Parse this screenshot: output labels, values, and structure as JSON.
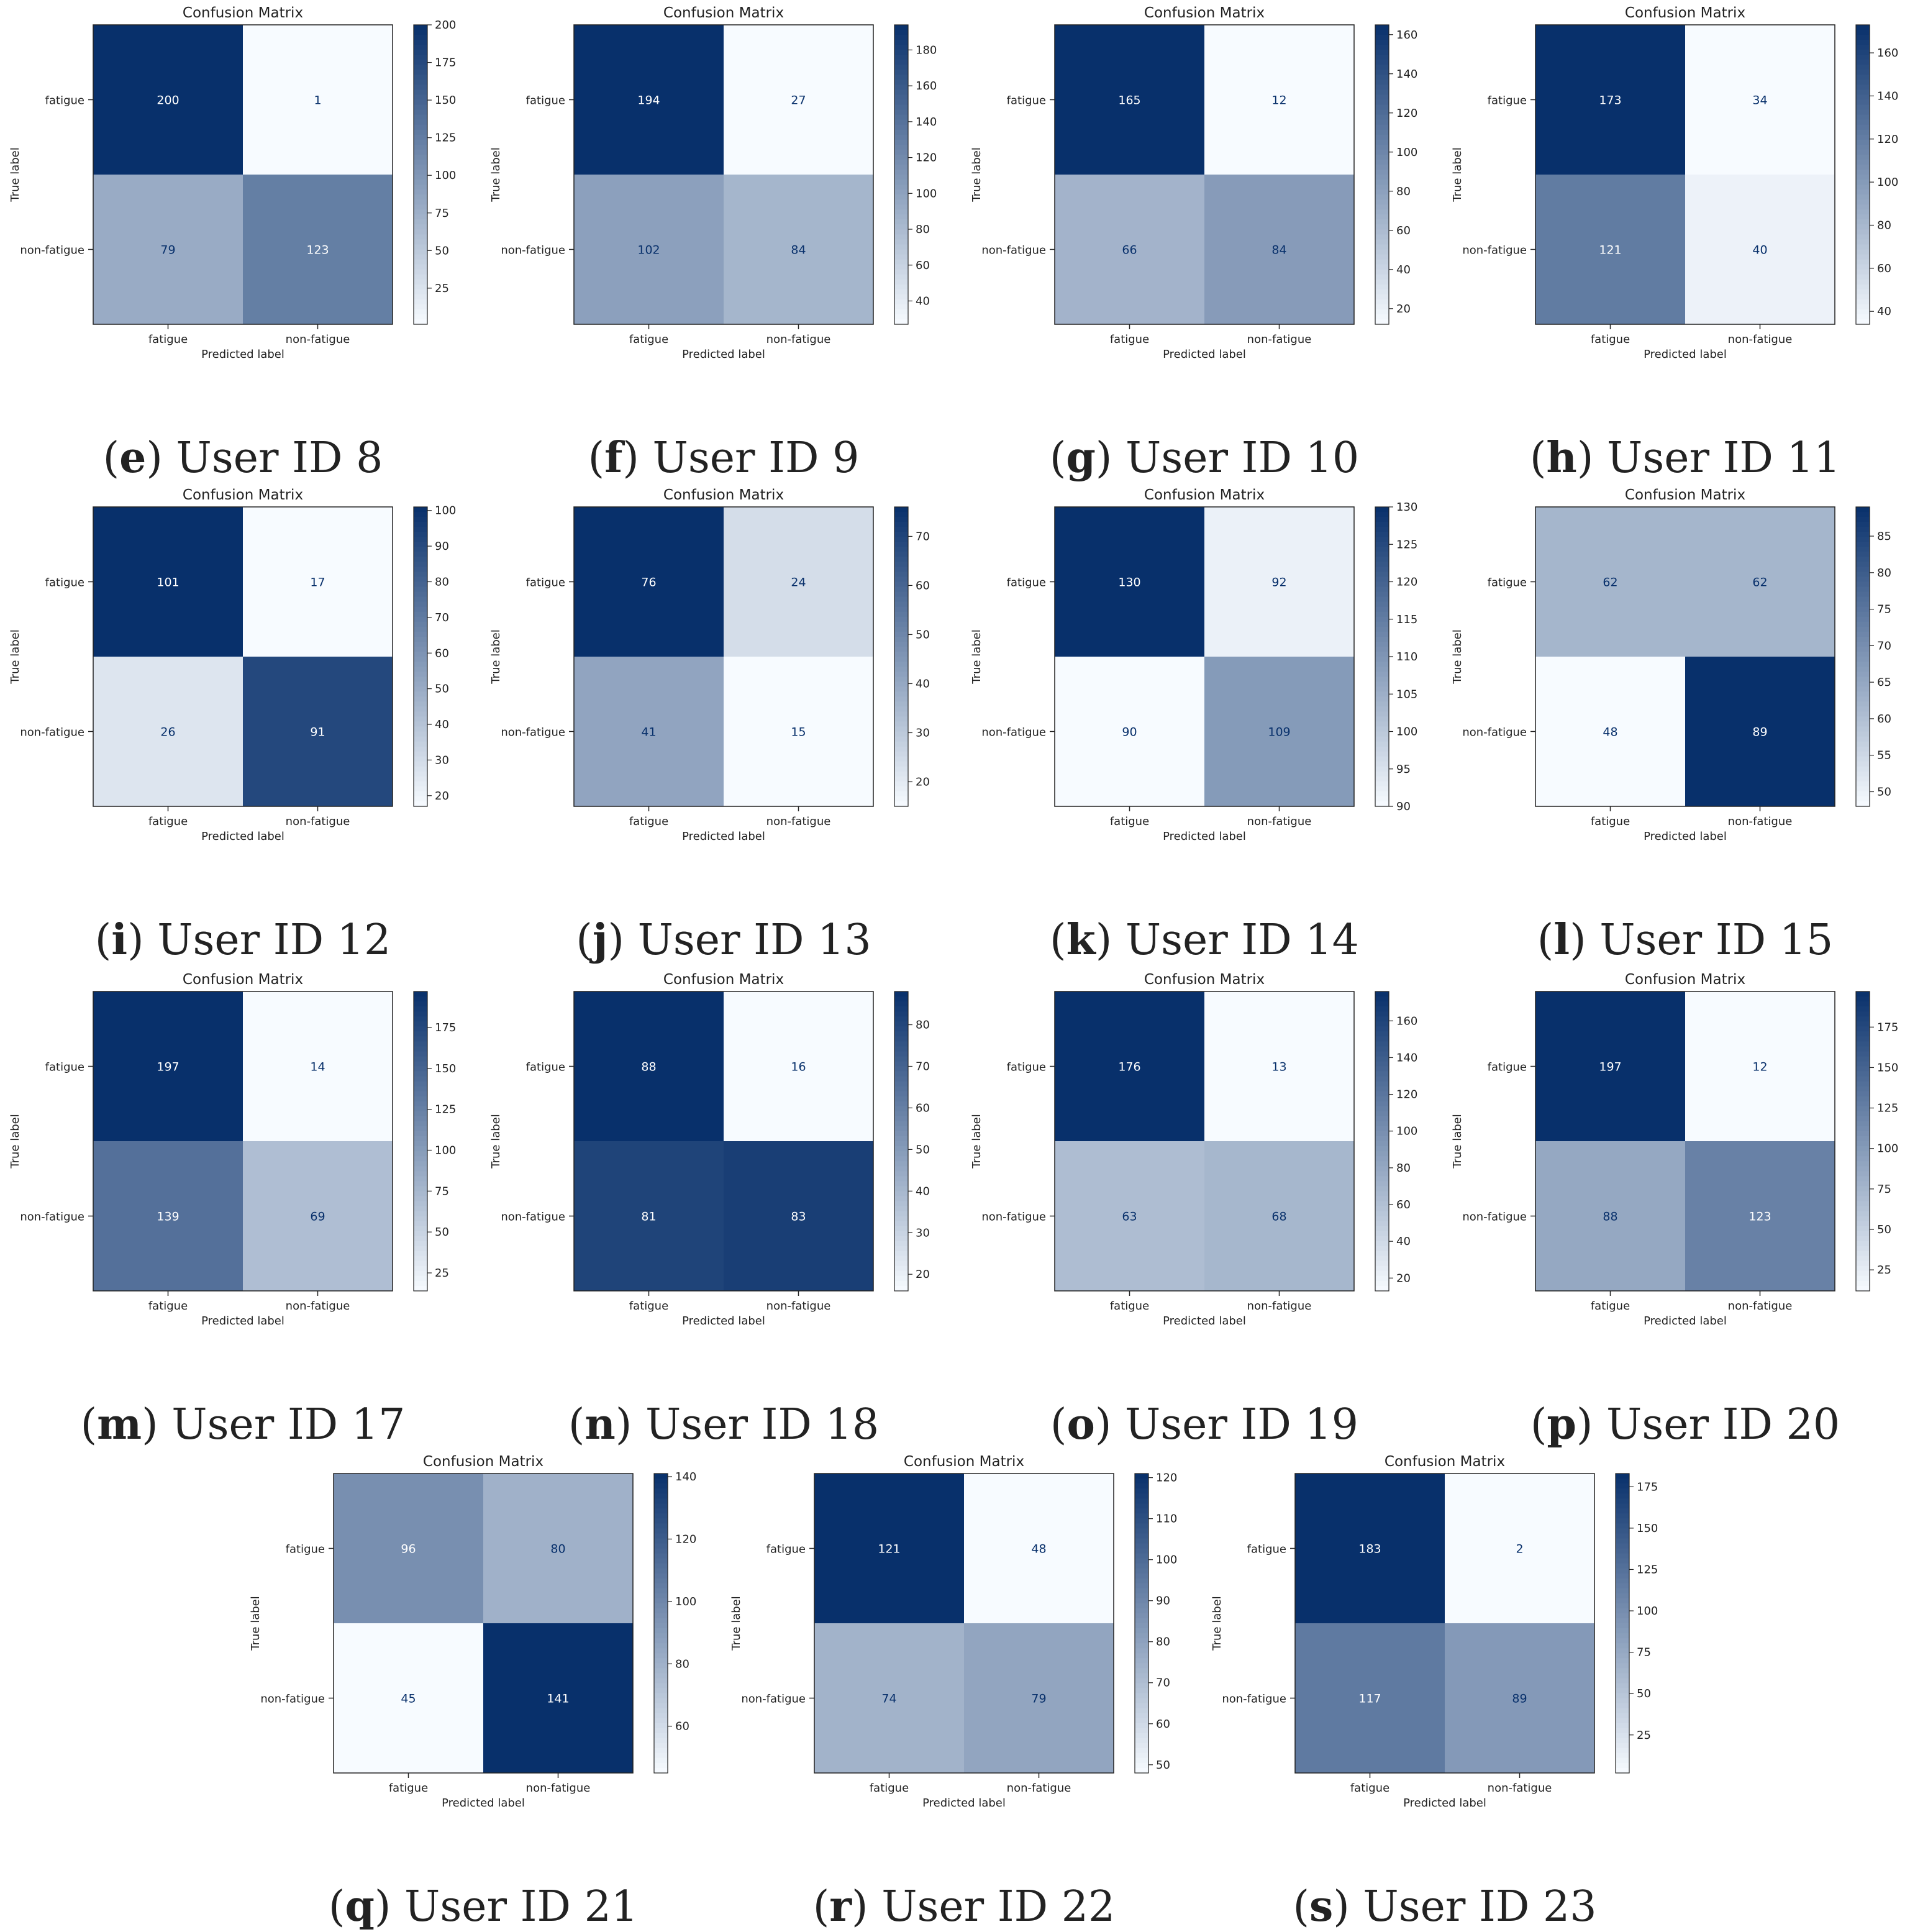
{
  "figure": {
    "panel_title": "Confusion Matrix",
    "xlabel": "Predicted label",
    "ylabel": "True label",
    "labels": [
      "fatigue",
      "non-fatigue"
    ],
    "colormap": {
      "name": "Blues",
      "light": "#f7fbff",
      "dark": "#08306b",
      "dark_text": "#08306b",
      "light_text": "#ffffff"
    }
  },
  "chart_data": [
    {
      "type": "heatmap",
      "caption_letter": "e",
      "caption_text": "User ID 8",
      "title": "Confusion Matrix",
      "matrix": [
        [
          200,
          1
        ],
        [
          79,
          123
        ]
      ],
      "colorbar_ticks": [
        25,
        50,
        75,
        100,
        125,
        150,
        175,
        200
      ]
    },
    {
      "type": "heatmap",
      "caption_letter": "f",
      "caption_text": "User ID 9",
      "title": "Confusion Matrix",
      "matrix": [
        [
          194,
          27
        ],
        [
          102,
          84
        ]
      ],
      "colorbar_ticks": [
        40,
        60,
        80,
        100,
        120,
        140,
        160,
        180
      ]
    },
    {
      "type": "heatmap",
      "caption_letter": "g",
      "caption_text": "User ID 10",
      "title": "Confusion Matrix",
      "matrix": [
        [
          165,
          12
        ],
        [
          66,
          84
        ]
      ],
      "colorbar_ticks": [
        20,
        40,
        60,
        80,
        100,
        120,
        140,
        160
      ]
    },
    {
      "type": "heatmap",
      "caption_letter": "h",
      "caption_text": "User ID 11",
      "title": "Confusion Matrix",
      "matrix": [
        [
          173,
          34
        ],
        [
          121,
          40
        ]
      ],
      "colorbar_ticks": [
        40,
        60,
        80,
        100,
        120,
        140,
        160
      ]
    },
    {
      "type": "heatmap",
      "caption_letter": "i",
      "caption_text": "User ID 12",
      "title": "Confusion Matrix",
      "matrix": [
        [
          101,
          17
        ],
        [
          26,
          91
        ]
      ],
      "colorbar_ticks": [
        20,
        30,
        40,
        50,
        60,
        70,
        80,
        90,
        100
      ]
    },
    {
      "type": "heatmap",
      "caption_letter": "j",
      "caption_text": "User ID 13",
      "title": "Confusion Matrix",
      "matrix": [
        [
          76,
          24
        ],
        [
          41,
          15
        ]
      ],
      "colorbar_ticks": [
        20,
        30,
        40,
        50,
        60,
        70
      ]
    },
    {
      "type": "heatmap",
      "caption_letter": "k",
      "caption_text": "User ID 14",
      "title": "Confusion Matrix",
      "matrix": [
        [
          130,
          92
        ],
        [
          90,
          109
        ]
      ],
      "colorbar_ticks": [
        90,
        95,
        100,
        105,
        110,
        115,
        120,
        125,
        130
      ]
    },
    {
      "type": "heatmap",
      "caption_letter": "l",
      "caption_text": "User ID 15",
      "title": "Confusion Matrix",
      "matrix": [
        [
          62,
          62
        ],
        [
          48,
          89
        ]
      ],
      "colorbar_ticks": [
        50,
        55,
        60,
        65,
        70,
        75,
        80,
        85
      ]
    },
    {
      "type": "heatmap",
      "caption_letter": "m",
      "caption_text": "User ID 17",
      "title": "Confusion Matrix",
      "matrix": [
        [
          197,
          14
        ],
        [
          139,
          69
        ]
      ],
      "colorbar_ticks": [
        25,
        50,
        75,
        100,
        125,
        150,
        175
      ]
    },
    {
      "type": "heatmap",
      "caption_letter": "n",
      "caption_text": "User ID 18",
      "title": "Confusion Matrix",
      "matrix": [
        [
          88,
          16
        ],
        [
          81,
          83
        ]
      ],
      "colorbar_ticks": [
        20,
        30,
        40,
        50,
        60,
        70,
        80
      ]
    },
    {
      "type": "heatmap",
      "caption_letter": "o",
      "caption_text": "User ID 19",
      "title": "Confusion Matrix",
      "matrix": [
        [
          176,
          13
        ],
        [
          63,
          68
        ]
      ],
      "colorbar_ticks": [
        20,
        40,
        60,
        80,
        100,
        120,
        140,
        160
      ]
    },
    {
      "type": "heatmap",
      "caption_letter": "p",
      "caption_text": "User ID 20",
      "title": "Confusion Matrix",
      "matrix": [
        [
          197,
          12
        ],
        [
          88,
          123
        ]
      ],
      "colorbar_ticks": [
        25,
        50,
        75,
        100,
        125,
        150,
        175
      ]
    },
    {
      "type": "heatmap",
      "caption_letter": "q",
      "caption_text": "User ID 21",
      "title": "Confusion Matrix",
      "matrix": [
        [
          96,
          80
        ],
        [
          45,
          141
        ]
      ],
      "colorbar_ticks": [
        60,
        80,
        100,
        120,
        140
      ]
    },
    {
      "type": "heatmap",
      "caption_letter": "r",
      "caption_text": "User ID 22",
      "title": "Confusion Matrix",
      "matrix": [
        [
          121,
          48
        ],
        [
          74,
          79
        ]
      ],
      "colorbar_ticks": [
        50,
        60,
        70,
        80,
        90,
        100,
        110,
        120
      ]
    },
    {
      "type": "heatmap",
      "caption_letter": "s",
      "caption_text": "User ID 23",
      "title": "Confusion Matrix",
      "matrix": [
        [
          183,
          2
        ],
        [
          117,
          89
        ]
      ],
      "colorbar_ticks": [
        25,
        50,
        75,
        100,
        125,
        150,
        175
      ]
    }
  ]
}
